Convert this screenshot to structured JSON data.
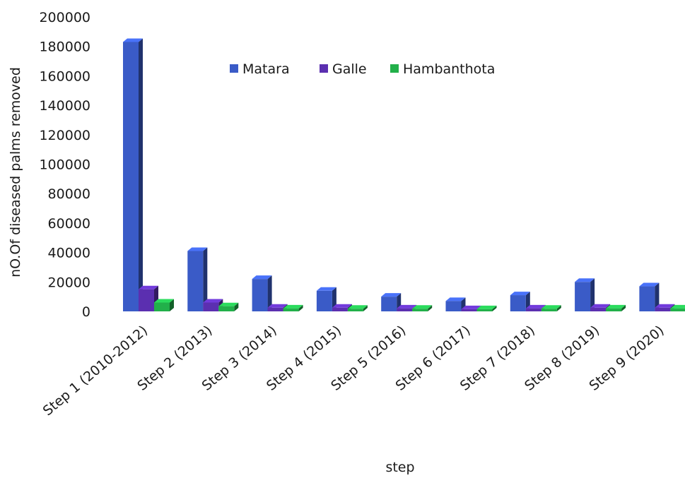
{
  "chart_data": {
    "type": "bar",
    "style": "3d-column",
    "title": "",
    "xlabel": "step",
    "ylabel": "nO.Of diseased palms removed",
    "ylim": [
      0,
      200000
    ],
    "yticks": [
      0,
      20000,
      40000,
      60000,
      80000,
      100000,
      120000,
      140000,
      160000,
      180000,
      200000
    ],
    "grid": false,
    "legend_position": "top-center",
    "categories": [
      "Step 1 (2010-2012)",
      "Step 2 (2013)",
      "Step 3 (2014)",
      "Step 4 (2015)",
      "Step 5 (2016)",
      "Step 6 (2017)",
      "Step 7 (2018)",
      "Step 8 (2019)",
      "Step 9 (2020)"
    ],
    "series": [
      {
        "name": "Matara",
        "color": "#3a5bc7",
        "values": [
          183000,
          41000,
          22000,
          14000,
          10000,
          7000,
          11000,
          20000,
          17000
        ]
      },
      {
        "name": "Galle",
        "color": "#5b2fb0",
        "values": [
          15000,
          6000,
          2500,
          2500,
          2000,
          1500,
          2000,
          2500,
          2500
        ]
      },
      {
        "name": "Hambanthota",
        "color": "#22b04a",
        "values": [
          6000,
          3500,
          2000,
          1800,
          1800,
          1500,
          1800,
          2000,
          2000
        ]
      }
    ]
  }
}
